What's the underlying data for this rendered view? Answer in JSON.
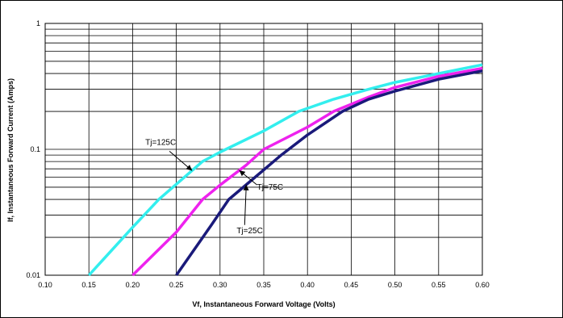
{
  "chart_data": {
    "type": "line",
    "xlabel": "Vf, Instantaneous Forward  Voltage (Volts)",
    "ylabel": "If, Instantaneous Forward Current (Amps)",
    "xlim": [
      0.1,
      0.6
    ],
    "ylim": [
      0.01,
      1
    ],
    "yscale": "log",
    "grid": true,
    "x_ticks": [
      "0.10",
      "0.15",
      "0.20",
      "0.25",
      "0.30",
      "0.35",
      "0.40",
      "0.45",
      "0.50",
      "0.55",
      "0.60"
    ],
    "y_ticks": [
      "0.01",
      "0.1",
      "1"
    ],
    "series": [
      {
        "name": "Tj=125C",
        "color": "#33eeee",
        "points": [
          [
            0.15,
            0.01
          ],
          [
            0.2,
            0.024
          ],
          [
            0.23,
            0.04
          ],
          [
            0.28,
            0.08
          ],
          [
            0.3,
            0.095
          ],
          [
            0.35,
            0.14
          ],
          [
            0.39,
            0.2
          ],
          [
            0.43,
            0.25
          ],
          [
            0.47,
            0.3
          ],
          [
            0.5,
            0.34
          ],
          [
            0.55,
            0.4
          ],
          [
            0.6,
            0.47
          ]
        ]
      },
      {
        "name": "Tj=75C",
        "color": "#ee22ee",
        "points": [
          [
            0.2,
            0.01
          ],
          [
            0.25,
            0.022
          ],
          [
            0.28,
            0.04
          ],
          [
            0.3,
            0.052
          ],
          [
            0.33,
            0.075
          ],
          [
            0.35,
            0.1
          ],
          [
            0.4,
            0.15
          ],
          [
            0.43,
            0.2
          ],
          [
            0.47,
            0.26
          ],
          [
            0.5,
            0.31
          ],
          [
            0.55,
            0.38
          ],
          [
            0.6,
            0.44
          ]
        ]
      },
      {
        "name": "Tj=25C",
        "color": "#1a1a7a",
        "points": [
          [
            0.25,
            0.01
          ],
          [
            0.29,
            0.025
          ],
          [
            0.31,
            0.04
          ],
          [
            0.34,
            0.06
          ],
          [
            0.37,
            0.09
          ],
          [
            0.4,
            0.13
          ],
          [
            0.44,
            0.2
          ],
          [
            0.47,
            0.25
          ],
          [
            0.5,
            0.29
          ],
          [
            0.55,
            0.36
          ],
          [
            0.6,
            0.42
          ]
        ]
      }
    ],
    "annotations": [
      {
        "text": "Tj=125C",
        "series": 0,
        "at_x": 0.268
      },
      {
        "text": "Tj=75C",
        "series": 1,
        "at_x": 0.322
      },
      {
        "text": "Tj=25C",
        "series": 2,
        "at_x": 0.33
      }
    ]
  }
}
